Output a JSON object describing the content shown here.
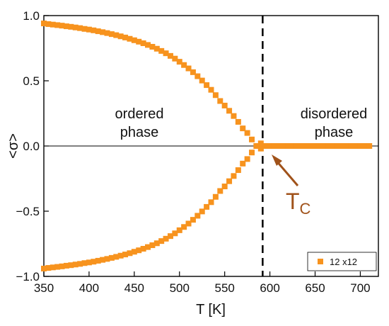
{
  "colors": {
    "marker": "#f7931e",
    "annotation": "#a0521a",
    "axis": "#000000"
  },
  "chart_data": {
    "type": "scatter",
    "marker": "square",
    "xlabel": "T [K]",
    "ylabel": "<σ>",
    "xlim": [
      350,
      720
    ],
    "ylim": [
      -1.0,
      1.0
    ],
    "xticks": [
      350,
      400,
      450,
      500,
      550,
      600,
      650,
      700
    ],
    "yticks": [
      -1.0,
      -0.5,
      0.0,
      0.5,
      1.0
    ],
    "xtick_labels": [
      "350",
      "400",
      "450",
      "500",
      "550",
      "600",
      "650",
      "700"
    ],
    "ytick_labels": [
      "−1.0",
      "−0.5",
      "0.0",
      "0.5",
      "1.0"
    ],
    "grid": false,
    "horizontal_reference": 0.0,
    "critical_line_x": 592,
    "series": [
      {
        "name": "12 x12",
        "upper_branch": {
          "x": [
            350,
            355,
            360,
            365,
            370,
            375,
            380,
            385,
            390,
            395,
            400,
            405,
            410,
            415,
            420,
            425,
            430,
            435,
            440,
            445,
            450,
            455,
            460,
            465,
            470,
            475,
            480,
            485,
            490,
            495,
            500,
            505,
            510,
            515,
            520,
            525,
            530,
            535,
            540,
            545,
            550,
            555,
            560,
            565,
            570,
            575,
            580,
            585,
            590
          ],
          "y": [
            0.94,
            0.935,
            0.931,
            0.927,
            0.923,
            0.918,
            0.914,
            0.909,
            0.904,
            0.898,
            0.893,
            0.887,
            0.88,
            0.873,
            0.866,
            0.858,
            0.85,
            0.841,
            0.832,
            0.822,
            0.811,
            0.8,
            0.788,
            0.775,
            0.761,
            0.746,
            0.729,
            0.711,
            0.691,
            0.67,
            0.646,
            0.621,
            0.595,
            0.566,
            0.535,
            0.502,
            0.467,
            0.431,
            0.39,
            0.345,
            0.31,
            0.27,
            0.23,
            0.185,
            0.135,
            0.1,
            0.05,
            0.0,
            -0.02
          ]
        },
        "lower_branch": {
          "x": [
            350,
            355,
            360,
            365,
            370,
            375,
            380,
            385,
            390,
            395,
            400,
            405,
            410,
            415,
            420,
            425,
            430,
            435,
            440,
            445,
            450,
            455,
            460,
            465,
            470,
            475,
            480,
            485,
            490,
            495,
            500,
            505,
            510,
            515,
            520,
            525,
            530,
            535,
            540,
            545,
            550,
            555,
            560,
            565,
            570,
            575,
            580,
            585,
            590
          ],
          "y": [
            -0.94,
            -0.935,
            -0.931,
            -0.927,
            -0.923,
            -0.918,
            -0.914,
            -0.909,
            -0.904,
            -0.898,
            -0.893,
            -0.887,
            -0.88,
            -0.873,
            -0.866,
            -0.858,
            -0.85,
            -0.841,
            -0.832,
            -0.822,
            -0.811,
            -0.8,
            -0.788,
            -0.775,
            -0.761,
            -0.746,
            -0.729,
            -0.711,
            -0.691,
            -0.67,
            -0.646,
            -0.621,
            -0.595,
            -0.566,
            -0.535,
            -0.502,
            -0.467,
            -0.431,
            -0.39,
            -0.345,
            -0.31,
            -0.27,
            -0.23,
            -0.185,
            -0.135,
            -0.1,
            -0.05,
            -0.0,
            0.02
          ]
        },
        "disordered_branch": {
          "x": [
            595,
            600,
            605,
            610,
            615,
            620,
            625,
            630,
            635,
            640,
            645,
            650,
            655,
            660,
            665,
            670,
            675,
            680,
            685,
            690,
            695,
            700,
            705,
            710
          ],
          "y": [
            0,
            0,
            0,
            0,
            0,
            0,
            0,
            0,
            0,
            0,
            0,
            0,
            0,
            0,
            0,
            0,
            0,
            0,
            0,
            0,
            0,
            0,
            0,
            0
          ]
        }
      }
    ],
    "annotations": [
      {
        "text_line1": "ordered",
        "text_line2": "phase",
        "at": [
          432,
          0.2
        ]
      },
      {
        "text_line1": "disordered",
        "text_line2": "phase",
        "at": [
          660,
          0.2
        ]
      },
      {
        "text": "T",
        "subscript": "C",
        "at": [
          612,
          -0.38
        ],
        "arrow_to": [
          592,
          -0.05
        ]
      }
    ],
    "legend": {
      "placement": "bottom-right",
      "entries": [
        "12 x12"
      ]
    }
  }
}
